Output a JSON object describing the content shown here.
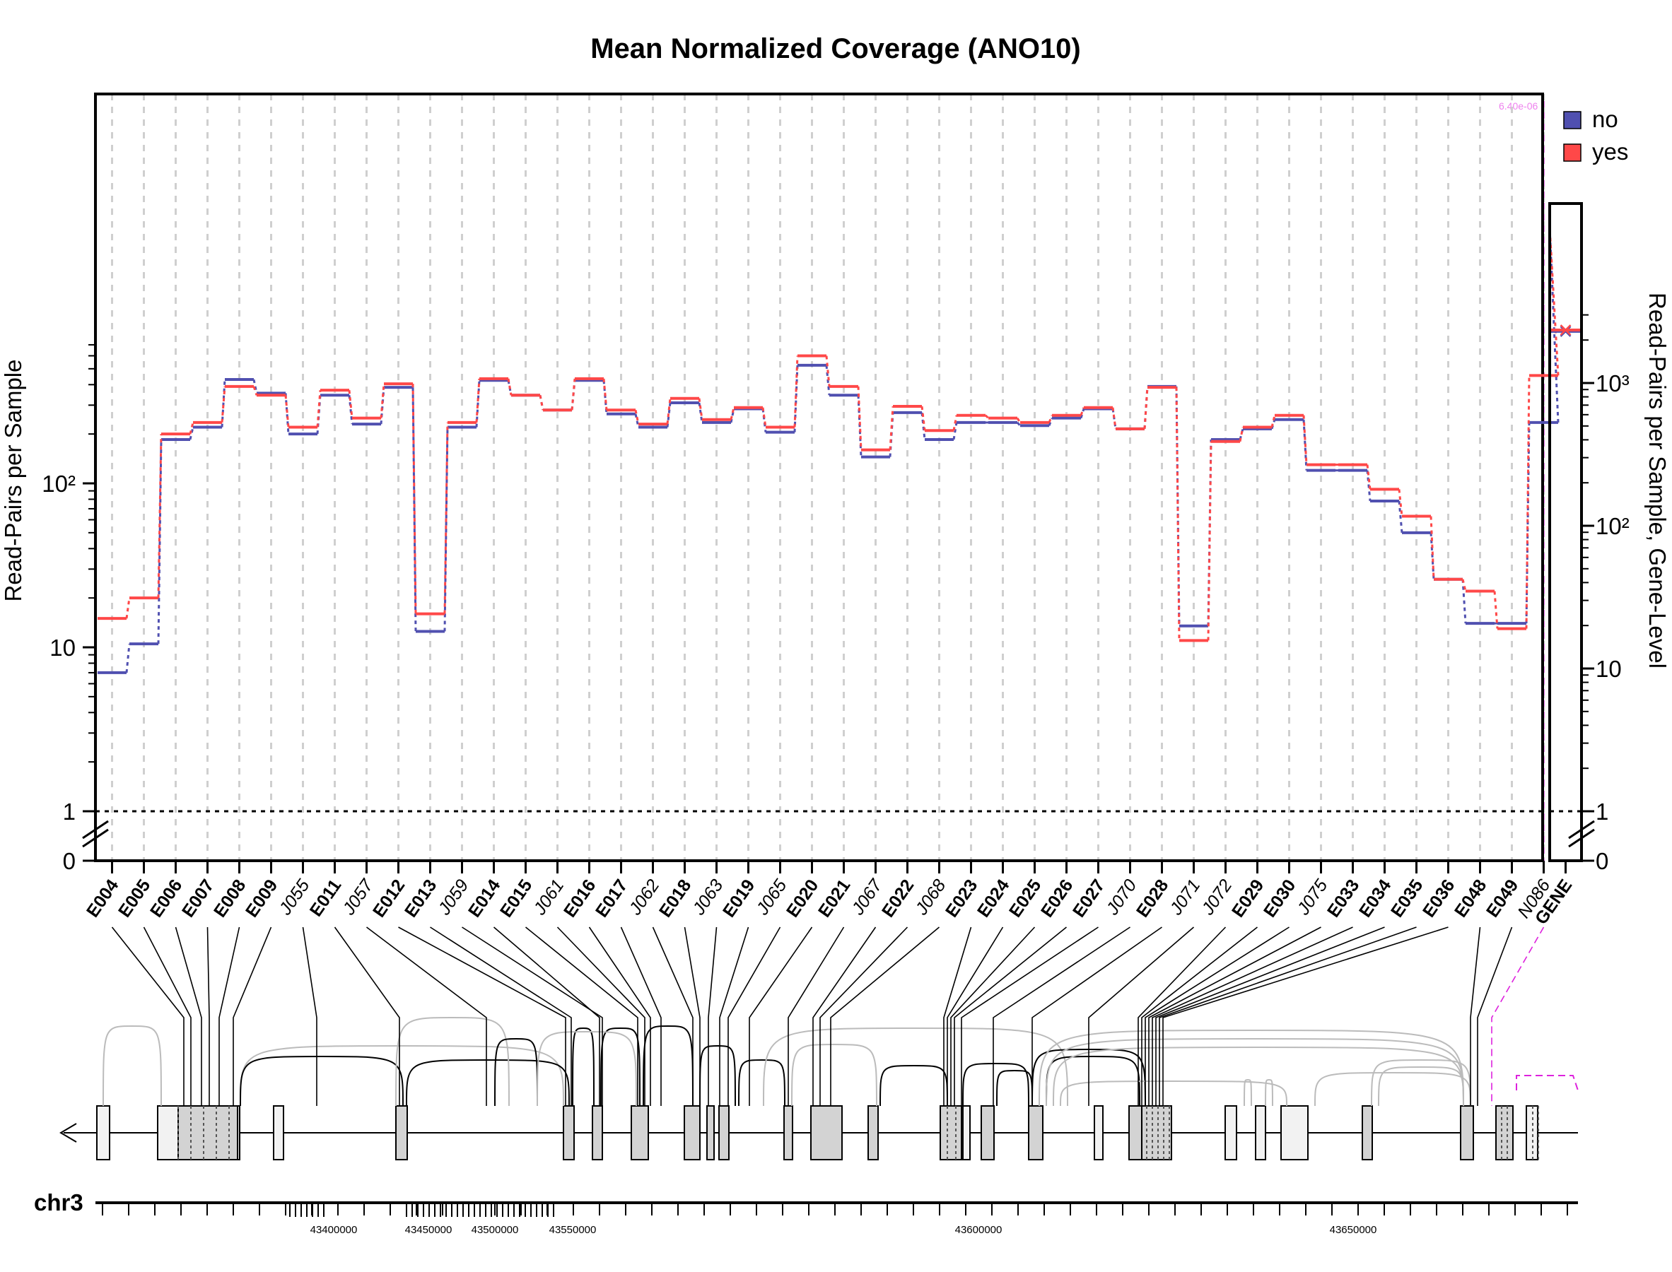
{
  "chart_data": {
    "type": "line",
    "title": "Mean Normalized Coverage (ANO10)",
    "ylabel_left": "Read-Pairs per Sample",
    "ylabel_right": "Read-Pairs per Sample, Gene-Level",
    "y_scale": "log",
    "y_ticks_left": [
      "0",
      "1",
      "10",
      "10²"
    ],
    "y_ticks_right": [
      "0",
      "1",
      "10",
      "10²",
      "10³"
    ],
    "grid": "vertical dashed",
    "legend_position": "top-right",
    "categories": [
      "E004",
      "E005",
      "E006",
      "E007",
      "E008",
      "E009",
      "J055",
      "E011",
      "J057",
      "E012",
      "E013",
      "J059",
      "E014",
      "E015",
      "J061",
      "E016",
      "E017",
      "J062",
      "E018",
      "J063",
      "E019",
      "J065",
      "E020",
      "E021",
      "J067",
      "E022",
      "J068",
      "E023",
      "E024",
      "E025",
      "E026",
      "E027",
      "J070",
      "E028",
      "J071",
      "J072",
      "E029",
      "E030",
      "J075",
      "E033",
      "E034",
      "E035",
      "E036",
      "E048",
      "E049",
      "N086"
    ],
    "italic_categories": [
      "J055",
      "J057",
      "J059",
      "J061",
      "J062",
      "J063",
      "J065",
      "J067",
      "J068",
      "J070",
      "J071",
      "J072",
      "J075",
      "N086"
    ],
    "gene_label": "GENE",
    "annotation": "6.40e-06",
    "series": [
      {
        "name": "no",
        "color": "#5050B0",
        "values": [
          7,
          10.5,
          185,
          220,
          430,
          355,
          200,
          345,
          230,
          385,
          12.5,
          220,
          425,
          345,
          280,
          425,
          265,
          220,
          310,
          235,
          285,
          205,
          525,
          345,
          145,
          270,
          185,
          235,
          235,
          225,
          250,
          285,
          215,
          390,
          13.5,
          185,
          215,
          245,
          120,
          120,
          78,
          50,
          26,
          14,
          14,
          235
        ]
      },
      {
        "name": "yes",
        "color": "#FF4848",
        "values": [
          15,
          20,
          200,
          235,
          390,
          345,
          220,
          370,
          250,
          405,
          16,
          235,
          435,
          345,
          280,
          435,
          280,
          230,
          330,
          245,
          290,
          220,
          600,
          390,
          160,
          295,
          210,
          260,
          250,
          235,
          260,
          290,
          215,
          385,
          11,
          180,
          220,
          260,
          130,
          130,
          92,
          63,
          26,
          22,
          13,
          455
        ]
      }
    ],
    "gene_level": {
      "no": 2300,
      "yes": 2350,
      "ylim": [
        1,
        3000
      ]
    },
    "ylim": [
      1,
      700
    ],
    "legend": [
      {
        "label": "no",
        "color": "#5050B0"
      },
      {
        "label": "yes",
        "color": "#FF4848"
      }
    ],
    "chromosome": "chr3",
    "genomic_ticks": [
      "43400000",
      "43450000",
      "43500000",
      "43550000",
      "43600000",
      "43650000"
    ]
  }
}
